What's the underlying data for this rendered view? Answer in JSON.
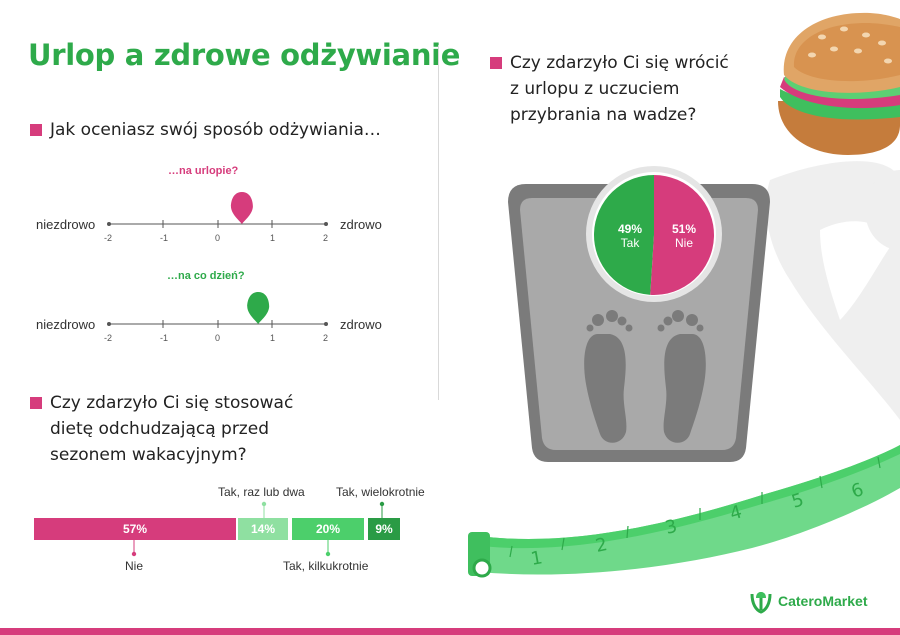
{
  "title": "Urlop a zdrowe odżywianie",
  "colors": {
    "green": "#2eaa4a",
    "pink": "#d63c7c",
    "light_green": "#8fe0a1",
    "mid_green": "#4ccf6b",
    "dark_green": "#2a9b45"
  },
  "q1": {
    "heading": "Jak oceniasz swój sposób odżywiania…",
    "scale_left": "niezdrowo",
    "scale_right": "zdrowo",
    "ticks": [
      "-2",
      "-1",
      "0",
      "1",
      "2"
    ],
    "vacation": {
      "label": "…na urlopie?",
      "value": 0.45
    },
    "everyday": {
      "label": "…na co dzień?",
      "value": 0.75
    }
  },
  "q2": {
    "heading_lines": [
      "Czy zdarzyło Ci się wrócić",
      "z urlopu z uczuciem",
      "przybrania na wadze?"
    ],
    "slices": [
      {
        "pct": "49%",
        "label": "Tak",
        "value": 49
      },
      {
        "pct": "51%",
        "label": "Nie",
        "value": 51
      }
    ]
  },
  "q3": {
    "heading_lines": [
      "Czy zdarzyło Ci się stosować",
      "dietę odchudzającą przed",
      "sezonem wakacyjnym?"
    ],
    "segments": [
      {
        "pct": "57%",
        "label": "Nie",
        "value": 57
      },
      {
        "pct": "14%",
        "label": "Tak, raz lub dwa",
        "value": 14
      },
      {
        "pct": "20%",
        "label": "Tak, kilkukrotnie",
        "value": 20
      },
      {
        "pct": "9%",
        "label": "Tak, wielokrotnie",
        "value": 9
      }
    ]
  },
  "tape_numbers": [
    "1",
    "2",
    "3",
    "4",
    "5",
    "6"
  ],
  "brand": "CateroMarket"
}
